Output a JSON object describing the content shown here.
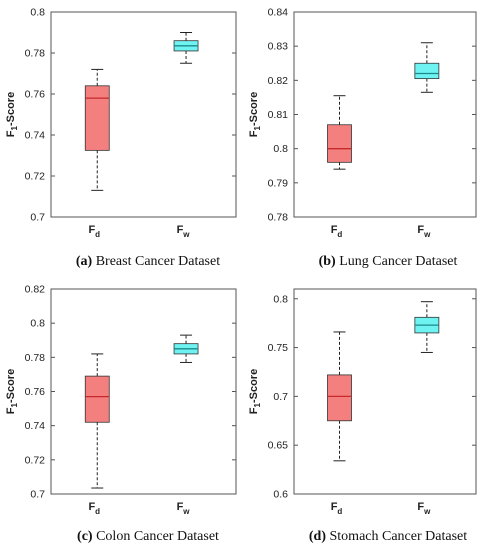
{
  "colors": {
    "fd_box": "#f47f7f",
    "fd_median": "#c42a2a",
    "fw_box": "#6ff2f2",
    "fw_median": "#1c8a8a",
    "frame": "#555555",
    "whisker": "#222222"
  },
  "chart_data": [
    {
      "type": "box",
      "letter": "(a)",
      "caption": "Breast Cancer Dataset",
      "ylabel_main": "F",
      "ylabel_sub": "1",
      "ylabel_rest": "-Score",
      "ylim": [
        0.7,
        0.8
      ],
      "yticks": [
        "0.7",
        "0.72",
        "0.74",
        "0.76",
        "0.78",
        "0.8"
      ],
      "categories": [
        {
          "main": "F",
          "sub": "d"
        },
        {
          "main": "F",
          "sub": "w"
        }
      ],
      "boxes": [
        {
          "min": 0.713,
          "q1": 0.7325,
          "median": 0.758,
          "q3": 0.764,
          "max": 0.772
        },
        {
          "min": 0.775,
          "q1": 0.781,
          "median": 0.7835,
          "q3": 0.786,
          "max": 0.79
        }
      ]
    },
    {
      "type": "box",
      "letter": "(b)",
      "caption": "Lung Cancer Dataset",
      "ylabel_main": "F",
      "ylabel_sub": "1",
      "ylabel_rest": "-Score",
      "ylim": [
        0.78,
        0.84
      ],
      "yticks": [
        "0.78",
        "0.79",
        "0.8",
        "0.81",
        "0.82",
        "0.83",
        "0.84"
      ],
      "categories": [
        {
          "main": "F",
          "sub": "d"
        },
        {
          "main": "F",
          "sub": "w"
        }
      ],
      "boxes": [
        {
          "min": 0.794,
          "q1": 0.796,
          "median": 0.8,
          "q3": 0.807,
          "max": 0.8155
        },
        {
          "min": 0.8165,
          "q1": 0.8205,
          "median": 0.822,
          "q3": 0.825,
          "max": 0.831
        }
      ]
    },
    {
      "type": "box",
      "letter": "(c)",
      "caption": "Colon Cancer Dataset",
      "ylabel_main": "F",
      "ylabel_sub": "1",
      "ylabel_rest": "-Score",
      "ylim": [
        0.7,
        0.82
      ],
      "yticks": [
        "0.7",
        "0.72",
        "0.74",
        "0.76",
        "0.78",
        "0.8",
        "0.82"
      ],
      "categories": [
        {
          "main": "F",
          "sub": "d"
        },
        {
          "main": "F",
          "sub": "w"
        }
      ],
      "boxes": [
        {
          "min": 0.7035,
          "q1": 0.742,
          "median": 0.757,
          "q3": 0.769,
          "max": 0.782
        },
        {
          "min": 0.777,
          "q1": 0.782,
          "median": 0.785,
          "q3": 0.788,
          "max": 0.793
        }
      ]
    },
    {
      "type": "box",
      "letter": "(d)",
      "caption": "Stomach Cancer Dataset",
      "ylabel_main": "F",
      "ylabel_sub": "1",
      "ylabel_rest": "-Score",
      "ylim": [
        0.6,
        0.81
      ],
      "yticks": [
        "0.6",
        "0.65",
        "0.7",
        "0.75",
        "0.8"
      ],
      "categories": [
        {
          "main": "F",
          "sub": "d"
        },
        {
          "main": "F",
          "sub": "w"
        }
      ],
      "boxes": [
        {
          "min": 0.634,
          "q1": 0.675,
          "median": 0.7,
          "q3": 0.722,
          "max": 0.766
        },
        {
          "min": 0.745,
          "q1": 0.765,
          "median": 0.773,
          "q3": 0.781,
          "max": 0.797
        }
      ]
    }
  ]
}
